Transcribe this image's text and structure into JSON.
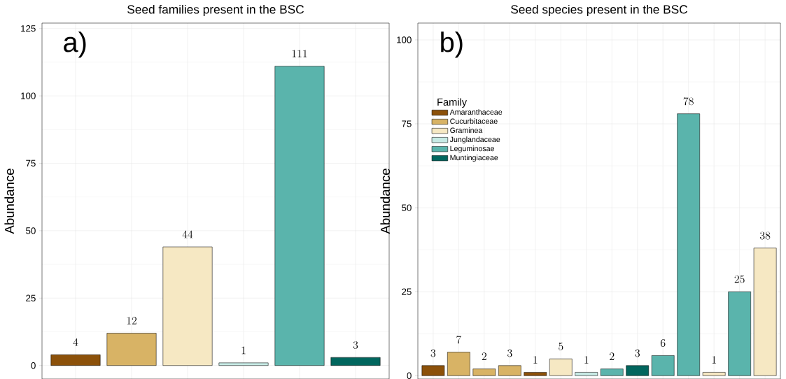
{
  "chart_data": [
    {
      "type": "bar",
      "title": "Seed families present in the BSC",
      "ylabel": "Abundance",
      "annotations": [
        "a)"
      ],
      "categories": [
        null,
        null,
        null,
        null,
        null,
        null
      ],
      "values": [
        4,
        12,
        44,
        1,
        111,
        3
      ],
      "colors": [
        "#8c510a",
        "#d8b365",
        "#f6e8c3",
        "#c7eae5",
        "#5ab4ac",
        "#01665e"
      ],
      "ylim": [
        -5,
        127
      ],
      "yticks": [
        0,
        25,
        50,
        75,
        100,
        125
      ],
      "grid": true,
      "data_labels": true,
      "tick_labels": "y"
    },
    {
      "type": "bar",
      "title": "Seed species present in the BSC",
      "ylabel": "Abundance",
      "annotations": [
        "b)"
      ],
      "categories": [
        null,
        null,
        null,
        null,
        null,
        null,
        null,
        null,
        null,
        null,
        null,
        null,
        null,
        null
      ],
      "series": [
        {
          "name": "Amaranthaceae",
          "color": "#8c510a",
          "values": [
            3,
            null,
            null,
            null,
            1,
            null,
            null,
            null,
            null,
            null,
            null,
            null,
            null,
            null
          ]
        },
        {
          "name": "Cucurbitaceae",
          "color": "#d8b365",
          "values": [
            null,
            7,
            2,
            3,
            null,
            null,
            null,
            null,
            null,
            null,
            null,
            null,
            null,
            null
          ]
        },
        {
          "name": "Graminea",
          "color": "#f6e8c3",
          "values": [
            null,
            null,
            null,
            null,
            null,
            5,
            null,
            null,
            null,
            null,
            null,
            1,
            null,
            38
          ]
        },
        {
          "name": "Junglandaceae",
          "color": "#c7eae5",
          "values": [
            null,
            null,
            null,
            null,
            null,
            null,
            1,
            null,
            null,
            null,
            null,
            null,
            null,
            null
          ]
        },
        {
          "name": "Leguminosae",
          "color": "#5ab4ac",
          "values": [
            null,
            null,
            null,
            null,
            null,
            null,
            null,
            2,
            null,
            6,
            78,
            null,
            25,
            null
          ]
        },
        {
          "name": "Muntingiaceae",
          "color": "#01665e",
          "values": [
            null,
            null,
            null,
            null,
            null,
            null,
            null,
            null,
            3,
            null,
            null,
            null,
            null,
            null
          ]
        }
      ],
      "legend": "top left",
      "legend_title": "Family",
      "ylim": [
        -1,
        105
      ],
      "yticks": [
        0,
        25,
        50,
        75,
        100
      ],
      "grid": true,
      "data_labels": true,
      "tick_labels": "y"
    }
  ]
}
